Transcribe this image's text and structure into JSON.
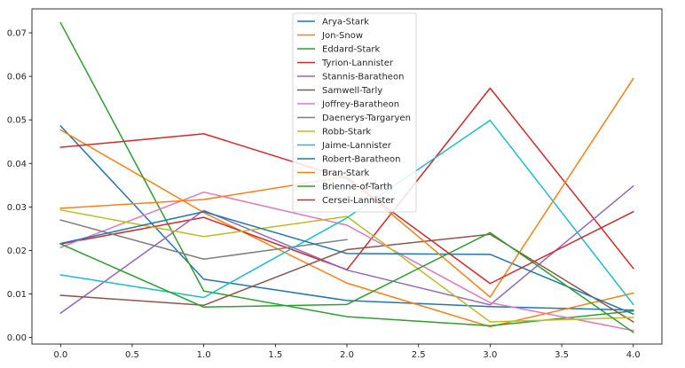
{
  "chart_data": {
    "type": "line",
    "title": "",
    "xlabel": "",
    "ylabel": "",
    "x": [
      0,
      1,
      2,
      3,
      4
    ],
    "xlim": [
      -0.2,
      4.2
    ],
    "ylim": [
      -0.0015,
      0.0755
    ],
    "x_ticks": [
      0.0,
      0.5,
      1.0,
      1.5,
      2.0,
      2.5,
      3.0,
      3.5,
      4.0
    ],
    "x_tick_labels": [
      "0.0",
      "0.5",
      "1.0",
      "1.5",
      "2.0",
      "2.5",
      "3.0",
      "3.5",
      "4.0"
    ],
    "y_ticks": [
      0.0,
      0.01,
      0.02,
      0.03,
      0.04,
      0.05,
      0.06,
      0.07
    ],
    "y_tick_labels": [
      "0.00",
      "0.01",
      "0.02",
      "0.03",
      "0.04",
      "0.05",
      "0.06",
      "0.07"
    ],
    "grid": false,
    "legend_position": "top-center",
    "series": [
      {
        "name": "Arya-Stark",
        "color": "#1f77b4",
        "values": [
          0.0486,
          0.0134,
          0.0085,
          0.0071,
          0.0063
        ]
      },
      {
        "name": "Jon-Snow",
        "color": "#ff7f0e",
        "values": [
          0.0477,
          0.0287,
          0.0125,
          0.0025,
          0.0102
        ]
      },
      {
        "name": "Eddard-Stark",
        "color": "#2ca02c",
        "values": [
          0.0723,
          0.0107,
          0.0048,
          0.0027,
          0.0061
        ]
      },
      {
        "name": "Tyrion-Lannister",
        "color": "#d62728",
        "values": [
          0.0215,
          0.0276,
          0.0156,
          0.0573,
          0.0159
        ]
      },
      {
        "name": "Stannis-Baratheon",
        "color": "#9467bd",
        "values": [
          0.0056,
          0.0292,
          0.0155,
          0.0075,
          0.0348
        ]
      },
      {
        "name": "Samwell-Tarly",
        "color": "#8c564b",
        "values": [
          0.0097,
          0.0074,
          0.0202,
          0.0237,
          0.0036
        ]
      },
      {
        "name": "Joffrey-Baratheon",
        "color": "#e377c2",
        "values": [
          0.0207,
          0.0334,
          0.0258,
          0.008,
          0.0016
        ]
      },
      {
        "name": "Daenerys-Targaryen",
        "color": "#7f7f7f",
        "values": [
          0.027,
          0.018,
          0.0225,
          null,
          null
        ]
      },
      {
        "name": "Robb-Stark",
        "color": "#bcbd22",
        "values": [
          0.0293,
          0.0232,
          0.0278,
          0.0036,
          0.0046
        ]
      },
      {
        "name": "Jaime-Lannister",
        "color": "#17becf",
        "values": [
          0.0144,
          0.0092,
          0.0275,
          0.0499,
          0.0076
        ]
      },
      {
        "name": "Robert-Baratheon",
        "color": "#1f77b4",
        "values": [
          0.0216,
          0.0289,
          0.0193,
          0.0191,
          0.0054
        ]
      },
      {
        "name": "Bran-Stark",
        "color": "#ff7f0e",
        "values": [
          0.0297,
          0.0317,
          0.037,
          0.0093,
          0.0595
        ]
      },
      {
        "name": "Brienne-of-Tarth",
        "color": "#2ca02c",
        "values": [
          0.0215,
          0.007,
          0.0076,
          0.0241,
          0.0012
        ]
      },
      {
        "name": "Cersei-Lannister",
        "color": "#d62728",
        "values": [
          0.0437,
          0.0468,
          0.0365,
          0.0124,
          0.0289
        ]
      }
    ]
  }
}
